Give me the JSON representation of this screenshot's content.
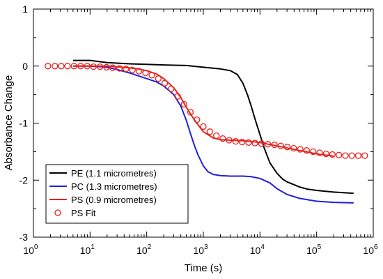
{
  "chart_data": {
    "type": "line",
    "title": "",
    "xlabel": "Time (s)",
    "ylabel": "Absorbance Change",
    "x_scale": "log",
    "xlim": [
      1,
      1000000
    ],
    "ylim": [
      -3,
      1
    ],
    "x_ticks": [
      {
        "value": 1,
        "base": "10",
        "exp": "0"
      },
      {
        "value": 10,
        "base": "10",
        "exp": "1"
      },
      {
        "value": 100,
        "base": "10",
        "exp": "2"
      },
      {
        "value": 1000,
        "base": "10",
        "exp": "3"
      },
      {
        "value": 10000,
        "base": "10",
        "exp": "4"
      },
      {
        "value": 100000,
        "base": "10",
        "exp": "5"
      },
      {
        "value": 1000000,
        "base": "10",
        "exp": "6"
      }
    ],
    "y_ticks": [
      {
        "value": 1,
        "label": "1"
      },
      {
        "value": 0,
        "label": "0"
      },
      {
        "value": -1,
        "label": "-1"
      },
      {
        "value": -2,
        "label": "-2"
      },
      {
        "value": -3,
        "label": "-3"
      }
    ],
    "grid": false,
    "legend_position": "bottom-left",
    "series": [
      {
        "name": "PE (1.1 micrometres)",
        "style": "line",
        "color": "#000000",
        "x": [
          5,
          10,
          20,
          50,
          100,
          200,
          500,
          1000,
          2000,
          3000,
          4000,
          5000,
          6000,
          7000,
          8000,
          10000,
          12000,
          15000,
          20000,
          25000,
          30000,
          50000,
          70000,
          100000,
          200000,
          300000,
          450000
        ],
        "y": [
          0.1,
          0.1,
          0.06,
          0.04,
          0.03,
          0.02,
          0.01,
          -0.02,
          -0.05,
          -0.08,
          -0.15,
          -0.3,
          -0.5,
          -0.7,
          -0.9,
          -1.2,
          -1.45,
          -1.7,
          -1.88,
          -1.98,
          -2.03,
          -2.12,
          -2.16,
          -2.18,
          -2.21,
          -2.22,
          -2.23
        ]
      },
      {
        "name": "PC (1.3 micrometres)",
        "style": "line",
        "color": "#1f1fdd",
        "x": [
          5,
          10,
          20,
          30,
          50,
          70,
          100,
          150,
          200,
          300,
          400,
          500,
          600,
          700,
          800,
          1000,
          1200,
          1500,
          2000,
          3000,
          5000,
          7000,
          10000,
          15000,
          20000,
          30000,
          50000,
          100000,
          200000,
          450000
        ],
        "y": [
          0.0,
          0.0,
          -0.02,
          -0.06,
          -0.12,
          -0.17,
          -0.22,
          -0.28,
          -0.35,
          -0.5,
          -0.7,
          -0.95,
          -1.2,
          -1.4,
          -1.55,
          -1.75,
          -1.85,
          -1.9,
          -1.92,
          -1.93,
          -1.93,
          -1.94,
          -1.97,
          -2.05,
          -2.15,
          -2.25,
          -2.32,
          -2.37,
          -2.39,
          -2.4
        ]
      },
      {
        "name": "PS (0.9 micrometres)",
        "style": "line",
        "color": "#e8201a",
        "x": [
          5,
          10,
          20,
          50,
          70,
          100,
          150,
          200,
          300,
          400,
          500,
          700,
          1000,
          1500,
          2000,
          3000,
          5000,
          10000,
          20000,
          50000,
          100000,
          200000
        ],
        "y": [
          0.0,
          0.0,
          0.0,
          -0.03,
          -0.05,
          -0.08,
          -0.14,
          -0.22,
          -0.38,
          -0.55,
          -0.72,
          -0.95,
          -1.15,
          -1.26,
          -1.29,
          -1.3,
          -1.31,
          -1.34,
          -1.4,
          -1.48,
          -1.54,
          -1.58
        ]
      },
      {
        "name": "PS Fit",
        "style": "markers",
        "color": "#e8201a",
        "x": [
          1.8,
          2.4,
          3.1,
          4.0,
          5.2,
          6.8,
          8.9,
          11.5,
          15,
          19.5,
          25,
          33,
          43,
          56,
          73,
          95,
          123,
          160,
          208,
          270,
          351,
          456,
          593,
          771,
          1000,
          1300,
          1700,
          2200,
          2860,
          3720,
          4840,
          6290,
          8180,
          10600,
          13800,
          18000,
          23300,
          30300,
          39400,
          51300,
          66700,
          86700,
          113000,
          147000,
          190000,
          248000,
          322000,
          418000,
          544000,
          707000
        ],
        "y": [
          0.0,
          0.0,
          0.0,
          0.0,
          0.0,
          0.0,
          0.0,
          -0.01,
          -0.01,
          -0.02,
          -0.03,
          -0.04,
          -0.05,
          -0.07,
          -0.09,
          -0.12,
          -0.16,
          -0.22,
          -0.3,
          -0.4,
          -0.53,
          -0.67,
          -0.81,
          -0.94,
          -1.06,
          -1.15,
          -1.22,
          -1.27,
          -1.3,
          -1.32,
          -1.33,
          -1.34,
          -1.35,
          -1.36,
          -1.37,
          -1.38,
          -1.4,
          -1.42,
          -1.44,
          -1.46,
          -1.48,
          -1.5,
          -1.52,
          -1.54,
          -1.55,
          -1.56,
          -1.57,
          -1.57,
          -1.57,
          -1.57
        ]
      }
    ]
  }
}
